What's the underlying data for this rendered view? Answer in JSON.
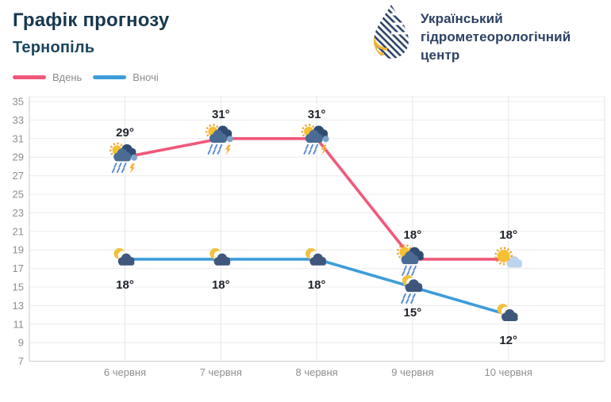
{
  "header": {
    "title": "Графік прогнозу",
    "subtitle": "Тернопіль"
  },
  "logo": {
    "lines": [
      "Український",
      "гідрометеорологічний",
      "центр"
    ],
    "navy": "#2d4164",
    "yellow": "#f2b632"
  },
  "chart_data": {
    "type": "line",
    "title": "Графік прогнозу",
    "subtitle": "Тернопіль",
    "categories": [
      "6 червня",
      "7 червня",
      "8 червня",
      "9 червня",
      "10 червня"
    ],
    "series": [
      {
        "name": "Вдень",
        "color": "#f0587a",
        "values": [
          29,
          31,
          31,
          18,
          18
        ],
        "point_labels": [
          "29°",
          "31°",
          "31°",
          "18°",
          "18°"
        ],
        "label_position": "above",
        "icons": [
          "sun-storm",
          "sun-storm",
          "sun-storm",
          "sun-rain",
          "sun-cloud"
        ]
      },
      {
        "name": "Вночі",
        "color": "#3d9cdb",
        "values": [
          18,
          18,
          18,
          15,
          12
        ],
        "point_labels": [
          "18°",
          "18°",
          "18°",
          "15°",
          "12°"
        ],
        "label_position": "below",
        "icons": [
          "moon-cloud",
          "moon-cloud",
          "moon-cloud",
          "moon-rain",
          "moon-cloud"
        ]
      }
    ],
    "ylim": [
      7,
      35
    ],
    "yticks": [
      35,
      33,
      31,
      29,
      27,
      25,
      23,
      21,
      19,
      17,
      15,
      13,
      11,
      9,
      7
    ],
    "grid": true,
    "legend_position": "top-left"
  },
  "colors": {
    "grid": "#ececec",
    "grid_vertical": "#e6e6e6",
    "axis": "#c9c9c9",
    "tick_text": "#8e8e8e",
    "point_label": "#20242c"
  }
}
